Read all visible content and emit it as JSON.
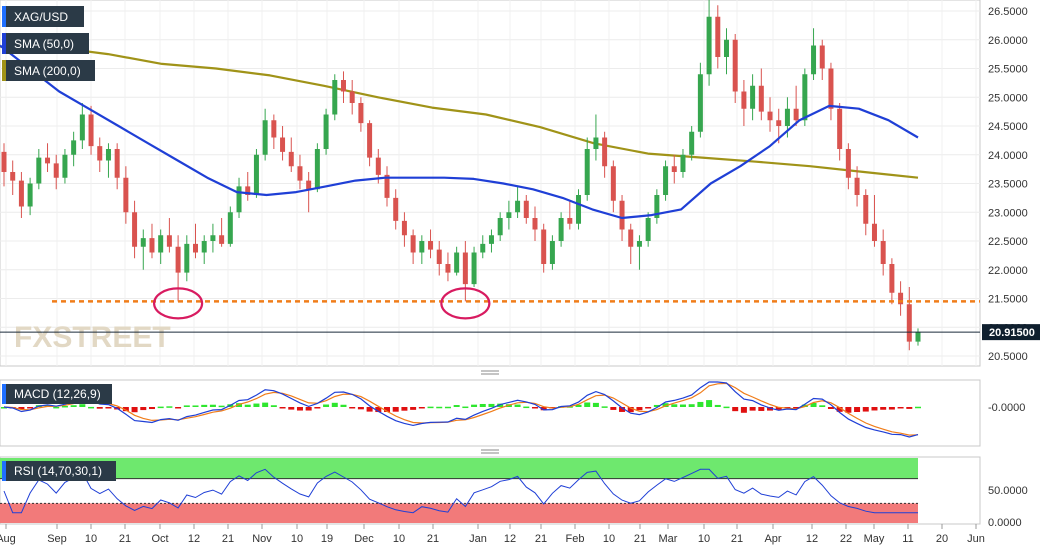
{
  "chart_data": {
    "type": "candlestick",
    "symbol": "XAG/USD",
    "last_price": "20.91500",
    "watermark": "FXSTREET",
    "x_tick_labels": [
      "Aug",
      "Sep",
      "10",
      "21",
      "Oct",
      "12",
      "21",
      "Nov",
      "10",
      "19",
      "Dec",
      "10",
      "21",
      "Jan",
      "12",
      "21",
      "Feb",
      "10",
      "21",
      "Mar",
      "10",
      "21",
      "Apr",
      "12",
      "22",
      "May",
      "11",
      "20",
      "Jun"
    ],
    "main": {
      "y_ticks": [
        "26.5000",
        "26.0000",
        "25.5000",
        "25.0000",
        "24.5000",
        "24.0000",
        "23.5000",
        "23.0000",
        "22.5000",
        "22.0000",
        "21.5000",
        "21.0000",
        "20.5000"
      ],
      "ylim": [
        20.4,
        26.75
      ],
      "support_level": 21.45,
      "indicators": [
        {
          "name": "SMA (50,0)",
          "color": "#1f3fd6"
        },
        {
          "name": "SMA (200,0)",
          "color": "#a09318"
        }
      ],
      "candles": [
        {
          "o": 24.05,
          "h": 24.2,
          "l": 23.45,
          "c": 23.7
        },
        {
          "o": 23.7,
          "h": 23.9,
          "l": 23.3,
          "c": 23.55
        },
        {
          "o": 23.55,
          "h": 23.7,
          "l": 22.9,
          "c": 23.1
        },
        {
          "o": 23.1,
          "h": 23.6,
          "l": 22.95,
          "c": 23.5
        },
        {
          "o": 23.5,
          "h": 24.1,
          "l": 23.4,
          "c": 23.95
        },
        {
          "o": 23.95,
          "h": 24.2,
          "l": 23.7,
          "c": 23.85
        },
        {
          "o": 23.85,
          "h": 24.0,
          "l": 23.4,
          "c": 23.6
        },
        {
          "o": 23.6,
          "h": 24.1,
          "l": 23.5,
          "c": 24.0
        },
        {
          "o": 24.0,
          "h": 24.4,
          "l": 23.8,
          "c": 24.25
        },
        {
          "o": 24.25,
          "h": 24.9,
          "l": 24.1,
          "c": 24.7
        },
        {
          "o": 24.7,
          "h": 24.85,
          "l": 24.0,
          "c": 24.15
        },
        {
          "o": 24.15,
          "h": 24.3,
          "l": 23.7,
          "c": 23.9
        },
        {
          "o": 23.9,
          "h": 24.2,
          "l": 23.6,
          "c": 24.1
        },
        {
          "o": 24.1,
          "h": 24.2,
          "l": 23.4,
          "c": 23.6
        },
        {
          "o": 23.6,
          "h": 23.8,
          "l": 22.8,
          "c": 23.0
        },
        {
          "o": 23.0,
          "h": 23.2,
          "l": 22.2,
          "c": 22.4
        },
        {
          "o": 22.4,
          "h": 22.7,
          "l": 22.0,
          "c": 22.55
        },
        {
          "o": 22.55,
          "h": 22.8,
          "l": 22.2,
          "c": 22.3
        },
        {
          "o": 22.3,
          "h": 22.7,
          "l": 22.1,
          "c": 22.6
        },
        {
          "o": 22.6,
          "h": 22.9,
          "l": 22.3,
          "c": 22.4
        },
        {
          "o": 22.4,
          "h": 22.6,
          "l": 21.45,
          "c": 21.95
        },
        {
          "o": 21.95,
          "h": 22.6,
          "l": 21.8,
          "c": 22.45
        },
        {
          "o": 22.45,
          "h": 22.8,
          "l": 22.2,
          "c": 22.3
        },
        {
          "o": 22.3,
          "h": 22.6,
          "l": 22.1,
          "c": 22.5
        },
        {
          "o": 22.5,
          "h": 22.8,
          "l": 22.3,
          "c": 22.6
        },
        {
          "o": 22.6,
          "h": 22.9,
          "l": 22.4,
          "c": 22.45
        },
        {
          "o": 22.45,
          "h": 23.1,
          "l": 22.4,
          "c": 23.0
        },
        {
          "o": 23.0,
          "h": 23.6,
          "l": 22.9,
          "c": 23.45
        },
        {
          "o": 23.45,
          "h": 23.7,
          "l": 23.2,
          "c": 23.3
        },
        {
          "o": 23.3,
          "h": 24.1,
          "l": 23.25,
          "c": 24.0
        },
        {
          "o": 24.0,
          "h": 24.8,
          "l": 23.9,
          "c": 24.6
        },
        {
          "o": 24.6,
          "h": 24.7,
          "l": 24.1,
          "c": 24.3
        },
        {
          "o": 24.3,
          "h": 24.5,
          "l": 23.9,
          "c": 24.05
        },
        {
          "o": 24.05,
          "h": 24.3,
          "l": 23.7,
          "c": 23.8
        },
        {
          "o": 23.8,
          "h": 24.0,
          "l": 23.4,
          "c": 23.55
        },
        {
          "o": 23.55,
          "h": 23.7,
          "l": 23.0,
          "c": 23.4
        },
        {
          "o": 23.4,
          "h": 24.2,
          "l": 23.35,
          "c": 24.1
        },
        {
          "o": 24.1,
          "h": 24.8,
          "l": 24.0,
          "c": 24.7
        },
        {
          "o": 24.7,
          "h": 25.4,
          "l": 24.6,
          "c": 25.3
        },
        {
          "o": 25.3,
          "h": 25.45,
          "l": 24.9,
          "c": 25.1
        },
        {
          "o": 25.1,
          "h": 25.3,
          "l": 24.7,
          "c": 24.9
        },
        {
          "o": 24.9,
          "h": 25.0,
          "l": 24.4,
          "c": 24.55
        },
        {
          "o": 24.55,
          "h": 24.6,
          "l": 23.8,
          "c": 23.95
        },
        {
          "o": 23.95,
          "h": 24.1,
          "l": 23.5,
          "c": 23.65
        },
        {
          "o": 23.65,
          "h": 23.8,
          "l": 23.1,
          "c": 23.25
        },
        {
          "o": 23.25,
          "h": 23.4,
          "l": 22.7,
          "c": 22.85
        },
        {
          "o": 22.85,
          "h": 23.0,
          "l": 22.4,
          "c": 22.6
        },
        {
          "o": 22.6,
          "h": 22.7,
          "l": 22.1,
          "c": 22.3
        },
        {
          "o": 22.3,
          "h": 22.6,
          "l": 22.1,
          "c": 22.5
        },
        {
          "o": 22.5,
          "h": 22.7,
          "l": 22.2,
          "c": 22.35
        },
        {
          "o": 22.35,
          "h": 22.5,
          "l": 21.9,
          "c": 22.1
        },
        {
          "o": 22.1,
          "h": 22.3,
          "l": 21.8,
          "c": 21.95
        },
        {
          "o": 21.95,
          "h": 22.4,
          "l": 21.9,
          "c": 22.3
        },
        {
          "o": 22.3,
          "h": 22.5,
          "l": 21.45,
          "c": 21.75
        },
        {
          "o": 21.75,
          "h": 22.4,
          "l": 21.7,
          "c": 22.3
        },
        {
          "o": 22.3,
          "h": 22.6,
          "l": 22.2,
          "c": 22.45
        },
        {
          "o": 22.45,
          "h": 22.7,
          "l": 22.3,
          "c": 22.6
        },
        {
          "o": 22.6,
          "h": 23.0,
          "l": 22.5,
          "c": 22.9
        },
        {
          "o": 22.9,
          "h": 23.2,
          "l": 22.7,
          "c": 23.0
        },
        {
          "o": 23.0,
          "h": 23.45,
          "l": 22.9,
          "c": 23.2
        },
        {
          "o": 23.2,
          "h": 23.3,
          "l": 22.8,
          "c": 22.9
        },
        {
          "o": 22.9,
          "h": 23.1,
          "l": 22.5,
          "c": 22.7
        },
        {
          "o": 22.7,
          "h": 22.8,
          "l": 21.95,
          "c": 22.1
        },
        {
          "o": 22.1,
          "h": 22.6,
          "l": 22.0,
          "c": 22.5
        },
        {
          "o": 22.5,
          "h": 23.0,
          "l": 22.4,
          "c": 22.9
        },
        {
          "o": 22.9,
          "h": 23.2,
          "l": 22.7,
          "c": 22.8
        },
        {
          "o": 22.8,
          "h": 23.4,
          "l": 22.7,
          "c": 23.3
        },
        {
          "o": 23.3,
          "h": 24.3,
          "l": 23.2,
          "c": 24.1
        },
        {
          "o": 24.1,
          "h": 24.7,
          "l": 23.9,
          "c": 24.3
        },
        {
          "o": 24.3,
          "h": 24.4,
          "l": 23.6,
          "c": 23.8
        },
        {
          "o": 23.8,
          "h": 23.9,
          "l": 23.0,
          "c": 23.2
        },
        {
          "o": 23.2,
          "h": 23.3,
          "l": 22.5,
          "c": 22.7
        },
        {
          "o": 22.7,
          "h": 22.8,
          "l": 22.1,
          "c": 22.4
        },
        {
          "o": 22.4,
          "h": 22.6,
          "l": 22.0,
          "c": 22.5
        },
        {
          "o": 22.5,
          "h": 23.0,
          "l": 22.4,
          "c": 22.9
        },
        {
          "o": 22.9,
          "h": 23.4,
          "l": 22.8,
          "c": 23.3
        },
        {
          "o": 23.3,
          "h": 23.9,
          "l": 23.2,
          "c": 23.8
        },
        {
          "o": 23.8,
          "h": 24.0,
          "l": 23.5,
          "c": 23.7
        },
        {
          "o": 23.7,
          "h": 24.1,
          "l": 23.6,
          "c": 24.0
        },
        {
          "o": 24.0,
          "h": 24.5,
          "l": 23.9,
          "c": 24.4
        },
        {
          "o": 24.4,
          "h": 25.6,
          "l": 24.3,
          "c": 25.4
        },
        {
          "o": 25.4,
          "h": 26.7,
          "l": 25.2,
          "c": 26.4
        },
        {
          "o": 26.4,
          "h": 26.6,
          "l": 25.5,
          "c": 25.7
        },
        {
          "o": 25.7,
          "h": 26.2,
          "l": 25.4,
          "c": 26.0
        },
        {
          "o": 26.0,
          "h": 26.1,
          "l": 24.9,
          "c": 25.1
        },
        {
          "o": 25.1,
          "h": 25.3,
          "l": 24.5,
          "c": 24.8
        },
        {
          "o": 24.8,
          "h": 25.4,
          "l": 24.6,
          "c": 25.2
        },
        {
          "o": 25.2,
          "h": 25.5,
          "l": 24.6,
          "c": 24.75
        },
        {
          "o": 24.75,
          "h": 25.0,
          "l": 24.4,
          "c": 24.6
        },
        {
          "o": 24.6,
          "h": 24.8,
          "l": 24.2,
          "c": 24.5
        },
        {
          "o": 24.5,
          "h": 25.0,
          "l": 24.3,
          "c": 24.8
        },
        {
          "o": 24.8,
          "h": 25.2,
          "l": 24.5,
          "c": 24.6
        },
        {
          "o": 24.6,
          "h": 25.5,
          "l": 24.5,
          "c": 25.4
        },
        {
          "o": 25.4,
          "h": 26.2,
          "l": 25.3,
          "c": 25.9
        },
        {
          "o": 25.9,
          "h": 26.0,
          "l": 25.3,
          "c": 25.5
        },
        {
          "o": 25.5,
          "h": 25.6,
          "l": 24.6,
          "c": 24.8
        },
        {
          "o": 24.8,
          "h": 24.9,
          "l": 23.9,
          "c": 24.1
        },
        {
          "o": 24.1,
          "h": 24.2,
          "l": 23.4,
          "c": 23.6
        },
        {
          "o": 23.6,
          "h": 23.8,
          "l": 23.1,
          "c": 23.3
        },
        {
          "o": 23.3,
          "h": 23.4,
          "l": 22.6,
          "c": 22.8
        },
        {
          "o": 22.8,
          "h": 23.3,
          "l": 22.4,
          "c": 22.5
        },
        {
          "o": 22.5,
          "h": 22.7,
          "l": 21.9,
          "c": 22.1
        },
        {
          "o": 22.1,
          "h": 22.2,
          "l": 21.4,
          "c": 21.6
        },
        {
          "o": 21.6,
          "h": 21.8,
          "l": 21.2,
          "c": 21.4
        },
        {
          "o": 21.4,
          "h": 21.7,
          "l": 20.6,
          "c": 20.75
        },
        {
          "o": 20.75,
          "h": 20.98,
          "l": 20.68,
          "c": 20.92
        }
      ],
      "sma50": [
        25.9,
        25.5,
        25.1,
        24.8,
        24.5,
        24.2,
        23.9,
        23.6,
        23.35,
        23.3,
        23.35,
        23.45,
        23.55,
        23.6,
        23.6,
        23.6,
        23.58,
        23.5,
        23.4,
        23.25,
        23.05,
        22.9,
        22.95,
        23.05,
        23.5,
        23.8,
        24.15,
        24.6,
        24.85,
        24.8,
        24.6,
        24.3
      ],
      "sma200": [
        25.88,
        25.87,
        25.75,
        25.58,
        25.5,
        25.38,
        25.2,
        25.0,
        24.82,
        24.7,
        24.48,
        24.2,
        24.02,
        23.95,
        23.88,
        23.8,
        23.7,
        23.6
      ]
    },
    "macd": {
      "title": "MACD (12,26,9)",
      "y_tick": "-0.0000"
    },
    "rsi": {
      "title": "RSI (14,70,30,1)",
      "y_ticks": [
        "50.0000",
        "0.0000"
      ],
      "overbought": 70,
      "oversold": 30
    }
  }
}
